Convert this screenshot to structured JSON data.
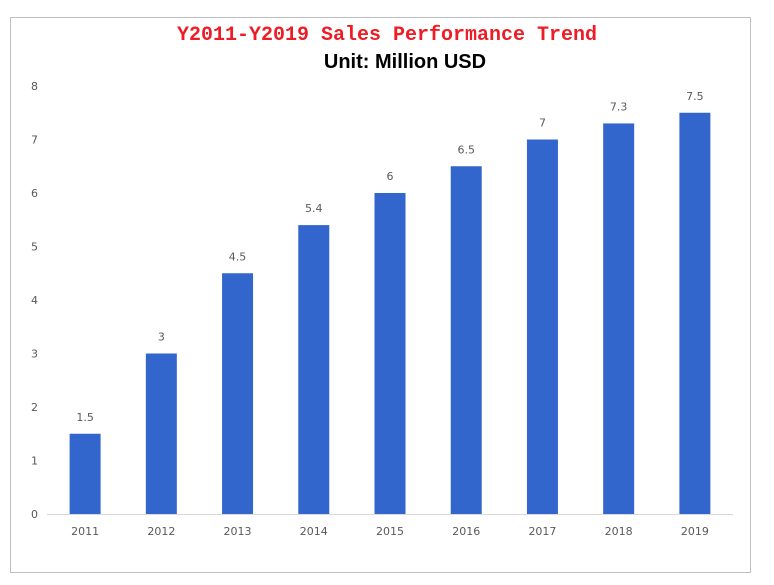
{
  "chart_data": {
    "type": "bar",
    "title": "Y2011-Y2019 Sales Performance Trend",
    "subtitle": "Unit: Million USD",
    "categories": [
      "2011",
      "2012",
      "2013",
      "2014",
      "2015",
      "2016",
      "2017",
      "2018",
      "2019"
    ],
    "values": [
      1.5,
      3,
      4.5,
      5.4,
      6,
      6.5,
      7,
      7.3,
      7.5
    ],
    "value_labels": [
      "1.5",
      "3",
      "4.5",
      "5.4",
      "6",
      "6.5",
      "7",
      "7.3",
      "7.5"
    ],
    "y_ticks": [
      "0",
      "1",
      "2",
      "3",
      "4",
      "5",
      "6",
      "7",
      "8"
    ],
    "ylim": [
      0,
      8
    ],
    "xlabel": "",
    "ylabel": "",
    "grid": false,
    "legend": "none",
    "colors": {
      "bar": "#3366cc",
      "title": "#ee1c25",
      "subtitle": "#000000",
      "axis_text": "#595959",
      "axis_line": "#d9d9d9",
      "frame": "#bfbfbf"
    }
  }
}
